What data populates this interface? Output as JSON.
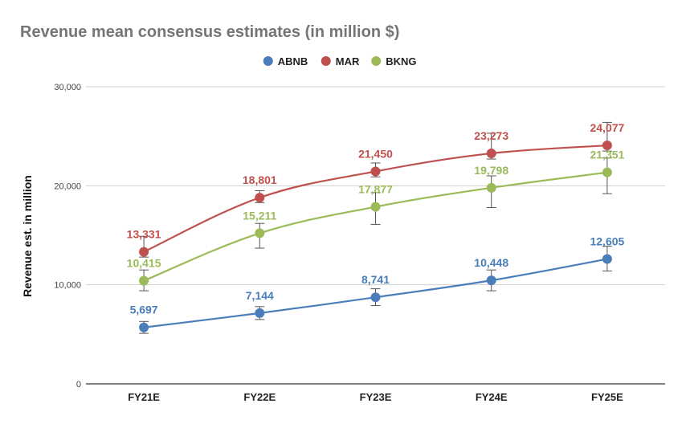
{
  "chart_data": {
    "type": "line",
    "title": "Revenue mean consensus estimates (in million $)",
    "xlabel": "",
    "ylabel": "Revenue est. in million",
    "categories": [
      "FY21E",
      "FY22E",
      "FY23E",
      "FY24E",
      "FY25E"
    ],
    "ylim": [
      0,
      30000
    ],
    "yticks": [
      0,
      10000,
      20000,
      30000
    ],
    "ytick_labels": [
      "0",
      "10,000",
      "20,000",
      "30,000"
    ],
    "grid": true,
    "legend_position": "top-center",
    "smooth": true,
    "series": [
      {
        "name": "ABNB",
        "color": "#4a7ebb",
        "values": [
          5697,
          7144,
          8741,
          10448,
          12605
        ],
        "labels": [
          "5,697",
          "7,144",
          "8,741",
          "10,448",
          "12,605"
        ],
        "error_low": [
          5100,
          6500,
          7900,
          9400,
          11400
        ],
        "error_high": [
          6300,
          7800,
          9600,
          11500,
          13900
        ]
      },
      {
        "name": "MAR",
        "color": "#c0504d",
        "values": [
          13331,
          18801,
          21450,
          23273,
          24077
        ],
        "labels": [
          "13,331",
          "18,801",
          "21,450",
          "23,273",
          "24,077"
        ],
        "error_low": [
          12800,
          18300,
          20900,
          22700,
          23500
        ],
        "error_high": [
          14900,
          19500,
          22300,
          25300,
          26400
        ]
      },
      {
        "name": "BKNG",
        "color": "#9bbb59",
        "values": [
          10415,
          15211,
          17877,
          19798,
          21351
        ],
        "labels": [
          "10,415",
          "15,211",
          "17,877",
          "19,798",
          "21,351"
        ],
        "error_low": [
          9400,
          13700,
          16100,
          17800,
          19200
        ],
        "error_high": [
          11500,
          16200,
          19300,
          21000,
          22800
        ]
      }
    ]
  }
}
